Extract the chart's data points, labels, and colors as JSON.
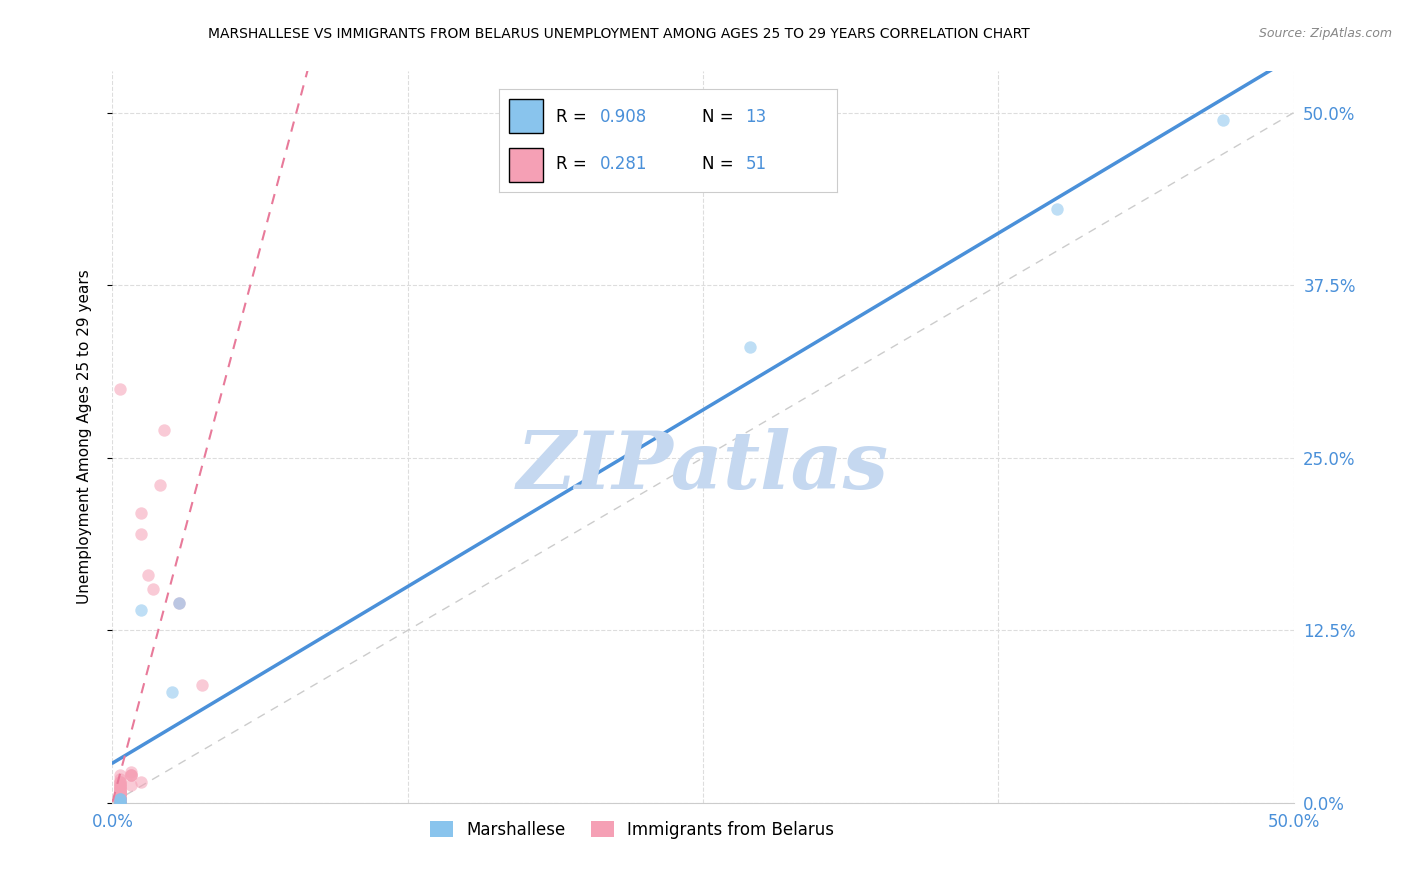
{
  "title": "MARSHALLESE VS IMMIGRANTS FROM BELARUS UNEMPLOYMENT AMONG AGES 25 TO 29 YEARS CORRELATION CHART",
  "source": "Source: ZipAtlas.com",
  "ylabel": "Unemployment Among Ages 25 to 29 years",
  "xlim": [
    0.0,
    0.5
  ],
  "ylim": [
    0.0,
    0.53
  ],
  "xticks": [
    0.0,
    0.125,
    0.25,
    0.375,
    0.5
  ],
  "xtick_labels_show": [
    "0.0%",
    "",
    "",
    "",
    "50.0%"
  ],
  "yticks": [
    0.0,
    0.125,
    0.25,
    0.375,
    0.5
  ],
  "ytick_labels": [
    "0.0%",
    "12.5%",
    "25.0%",
    "37.5%",
    "50.0%"
  ],
  "marshallese_x": [
    0.003,
    0.003,
    0.003,
    0.003,
    0.003,
    0.003,
    0.003,
    0.012,
    0.025,
    0.028,
    0.27,
    0.4,
    0.47
  ],
  "marshallese_y": [
    0.0,
    0.0,
    0.0,
    0.0,
    0.003,
    0.003,
    0.003,
    0.14,
    0.08,
    0.145,
    0.33,
    0.43,
    0.495
  ],
  "belarus_x": [
    0.003,
    0.003,
    0.003,
    0.003,
    0.003,
    0.003,
    0.003,
    0.003,
    0.003,
    0.003,
    0.003,
    0.003,
    0.003,
    0.003,
    0.003,
    0.003,
    0.003,
    0.003,
    0.003,
    0.003,
    0.003,
    0.003,
    0.003,
    0.003,
    0.003,
    0.003,
    0.003,
    0.003,
    0.003,
    0.003,
    0.003,
    0.003,
    0.003,
    0.003,
    0.003,
    0.003,
    0.008,
    0.008,
    0.008,
    0.008,
    0.008,
    0.012,
    0.012,
    0.012,
    0.015,
    0.017,
    0.02,
    0.022,
    0.028,
    0.038,
    0.003
  ],
  "belarus_y": [
    0.0,
    0.0,
    0.0,
    0.0,
    0.0,
    0.0,
    0.003,
    0.003,
    0.003,
    0.003,
    0.003,
    0.003,
    0.005,
    0.005,
    0.005,
    0.007,
    0.007,
    0.007,
    0.007,
    0.008,
    0.008,
    0.008,
    0.008,
    0.01,
    0.01,
    0.01,
    0.01,
    0.012,
    0.012,
    0.013,
    0.013,
    0.015,
    0.015,
    0.015,
    0.017,
    0.02,
    0.02,
    0.02,
    0.02,
    0.022,
    0.013,
    0.015,
    0.21,
    0.195,
    0.165,
    0.155,
    0.23,
    0.27,
    0.145,
    0.085,
    0.3
  ],
  "marshallese_color": "#89c4ed",
  "belarus_color": "#f5a0b5",
  "marshallese_line_color": "#4a90d9",
  "belarus_line_color": "#e87a9a",
  "ref_line_color": "#cccccc",
  "grid_color": "#dddddd",
  "tick_color": "#4a90d9",
  "R_marshallese": 0.908,
  "N_marshallese": 13,
  "R_belarus": 0.281,
  "N_belarus": 51,
  "watermark": "ZIPatlas",
  "watermark_color": "#c5d8f0",
  "dot_size": 80,
  "dot_alpha": 0.55,
  "figsize": [
    14.06,
    8.92
  ],
  "dpi": 100
}
